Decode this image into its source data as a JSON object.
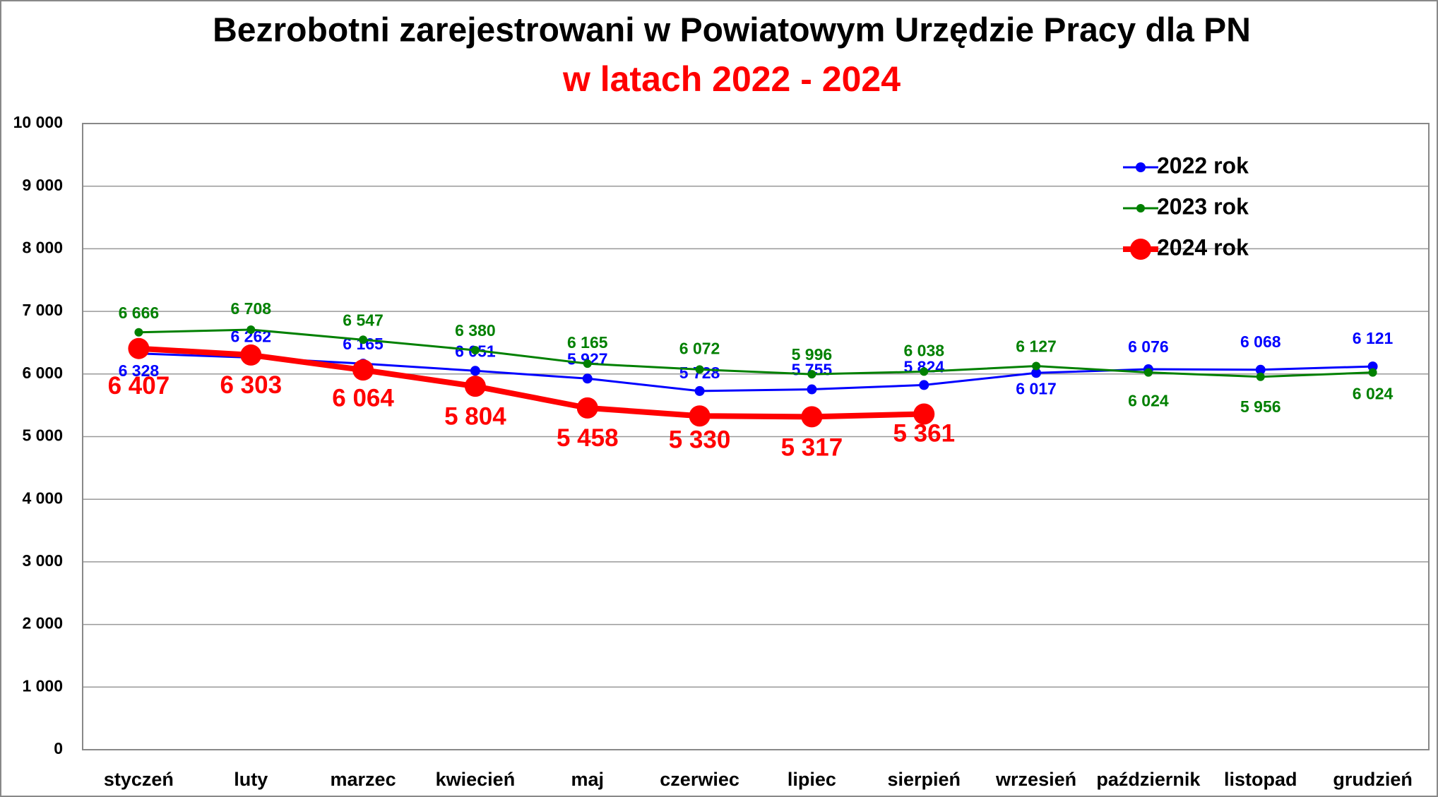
{
  "chart_data": {
    "type": "line",
    "title": "Bezrobotni zarejestrowani w Powiatowym Urzędzie Pracy dla PN",
    "subtitle": "w latach 2022 - 2024",
    "categories": [
      "styczeń",
      "luty",
      "marzec",
      "kwiecień",
      "maj",
      "czerwiec",
      "lipiec",
      "sierpień",
      "wrzesień",
      "październik",
      "listopad",
      "grudzień"
    ],
    "series": [
      {
        "name": "2022 rok",
        "color": "#0000ff",
        "values": [
          6328,
          6262,
          6165,
          6051,
          5927,
          5728,
          5755,
          5824,
          6017,
          6076,
          6068,
          6121
        ],
        "value_labels": [
          "6 328",
          "6 262",
          "6 165",
          "6 051",
          "5 927",
          "5 728",
          "5 755",
          "5 824",
          "6 017",
          "6 076",
          "6 068",
          "6 121"
        ]
      },
      {
        "name": "2023 rok",
        "color": "#008000",
        "values": [
          6666,
          6708,
          6547,
          6380,
          6165,
          6072,
          5996,
          6038,
          6127,
          6024,
          5956,
          6024
        ],
        "value_labels": [
          "6 666",
          "6 708",
          "6 547",
          "6 380",
          "6 165",
          "6 072",
          "5 996",
          "6 038",
          "6 127",
          "6 024",
          "5 956",
          "6 024"
        ]
      },
      {
        "name": "2024 rok",
        "color": "#ff0000",
        "values": [
          6407,
          6303,
          6064,
          5804,
          5458,
          5330,
          5317,
          5361,
          null,
          null,
          null,
          null
        ],
        "value_labels": [
          "6 407",
          "6 303",
          "6 064",
          "5 804",
          "5 458",
          "5 330",
          "5 317",
          "5 361",
          null,
          null,
          null,
          null
        ]
      }
    ],
    "ylim": [
      0,
      10000
    ],
    "yticks": [
      {
        "value": 0,
        "label": "0"
      },
      {
        "value": 1000,
        "label": "1 000"
      },
      {
        "value": 2000,
        "label": "2 000"
      },
      {
        "value": 3000,
        "label": "3 000"
      },
      {
        "value": 4000,
        "label": "4 000"
      },
      {
        "value": 5000,
        "label": "5 000"
      },
      {
        "value": 6000,
        "label": "6 000"
      },
      {
        "value": 7000,
        "label": "7 000"
      },
      {
        "value": 8000,
        "label": "8 000"
      },
      {
        "value": 9000,
        "label": "9 000"
      },
      {
        "value": 10000,
        "label": "10 000"
      }
    ],
    "grid": true,
    "legend": "upper right"
  }
}
